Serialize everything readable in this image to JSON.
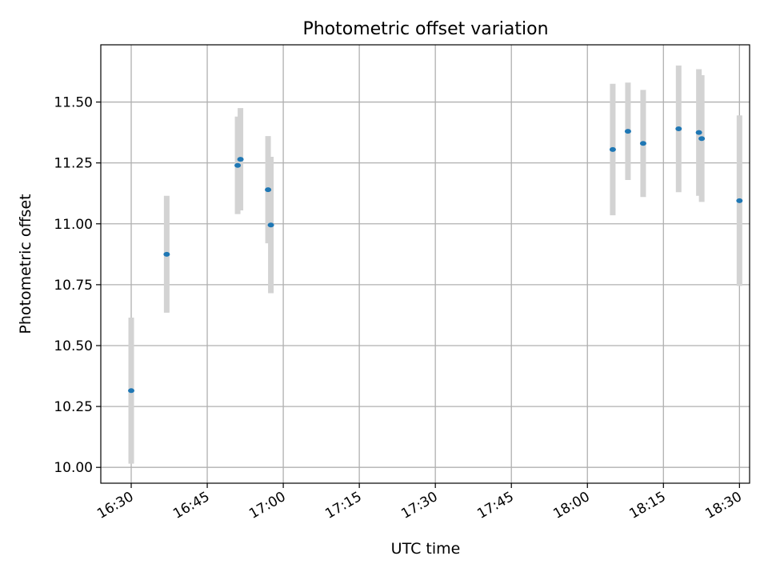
{
  "chart_data": {
    "type": "scatter",
    "title": "Photometric offset variation",
    "xlabel": "UTC time",
    "ylabel": "Photometric offset",
    "x_ticks": [
      "16:30",
      "16:45",
      "17:00",
      "17:15",
      "17:30",
      "17:45",
      "18:00",
      "18:15",
      "18:30"
    ],
    "y_ticks": [
      "10.00",
      "10.25",
      "10.50",
      "10.75",
      "11.00",
      "11.25",
      "11.50"
    ],
    "xlim": [
      "16:24",
      "18:32"
    ],
    "ylim": [
      9.935,
      11.735
    ],
    "grid": true,
    "marker_color": "#1f77b4",
    "errorbar_color": "#d3d3d3",
    "points": [
      {
        "time": "16:30",
        "y": 10.315,
        "err": 0.3
      },
      {
        "time": "16:37",
        "y": 10.875,
        "err": 0.24
      },
      {
        "time": "16:51",
        "y": 11.24,
        "err": 0.2
      },
      {
        "time": "16:51",
        "y": 11.265,
        "err": 0.21
      },
      {
        "time": "16:57",
        "y": 11.14,
        "err": 0.22
      },
      {
        "time": "16:57",
        "y": 10.995,
        "err": 0.28
      },
      {
        "time": "18:05",
        "y": 11.305,
        "err": 0.27
      },
      {
        "time": "18:08",
        "y": 11.38,
        "err": 0.2
      },
      {
        "time": "18:11",
        "y": 11.33,
        "err": 0.22
      },
      {
        "time": "18:18",
        "y": 11.39,
        "err": 0.26
      },
      {
        "time": "18:22",
        "y": 11.375,
        "err": 0.26
      },
      {
        "time": "18:22",
        "y": 11.35,
        "err": 0.26
      },
      {
        "time": "18:30",
        "y": 11.095,
        "err": 0.35
      }
    ]
  }
}
